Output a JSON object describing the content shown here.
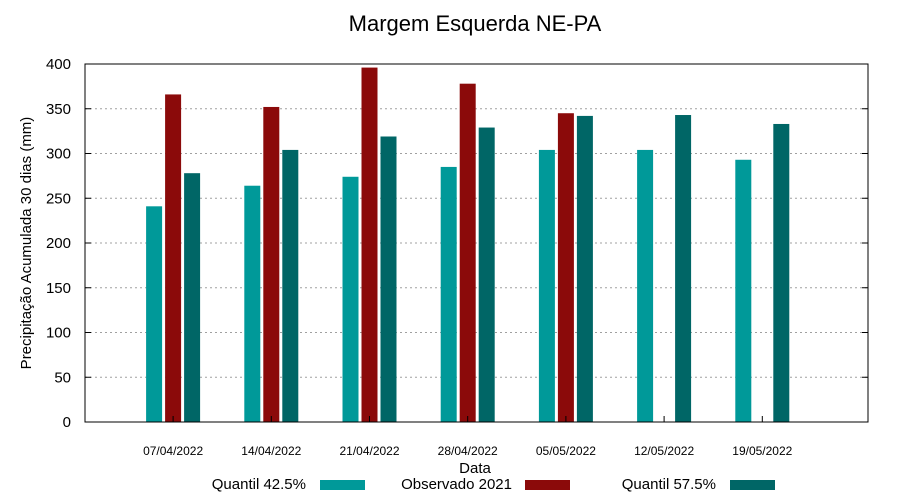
{
  "chart_data": {
    "type": "bar",
    "title": "Margem Esquerda NE-PA",
    "xlabel": "Data",
    "ylabel": "Precipitação Acumulada 30 dias (mm)",
    "ylim": [
      0,
      400
    ],
    "yticks": [
      0,
      50,
      100,
      150,
      200,
      250,
      300,
      350,
      400
    ],
    "grid": true,
    "legend_position": "bottom",
    "categories": [
      "07/04/2022",
      "14/04/2022",
      "21/04/2022",
      "28/04/2022",
      "05/05/2022",
      "12/05/2022",
      "19/05/2022"
    ],
    "series": [
      {
        "name": "Quantil 42.5%",
        "color": "#009999",
        "values": [
          241,
          264,
          274,
          285,
          304,
          304,
          293
        ]
      },
      {
        "name": "Observado 2021",
        "color": "#8b0a0a",
        "values": [
          366,
          352,
          396,
          378,
          345,
          null,
          null
        ]
      },
      {
        "name": "Quantil 57.5%",
        "color": "#006666",
        "values": [
          278,
          304,
          319,
          329,
          342,
          343,
          333
        ]
      }
    ]
  }
}
